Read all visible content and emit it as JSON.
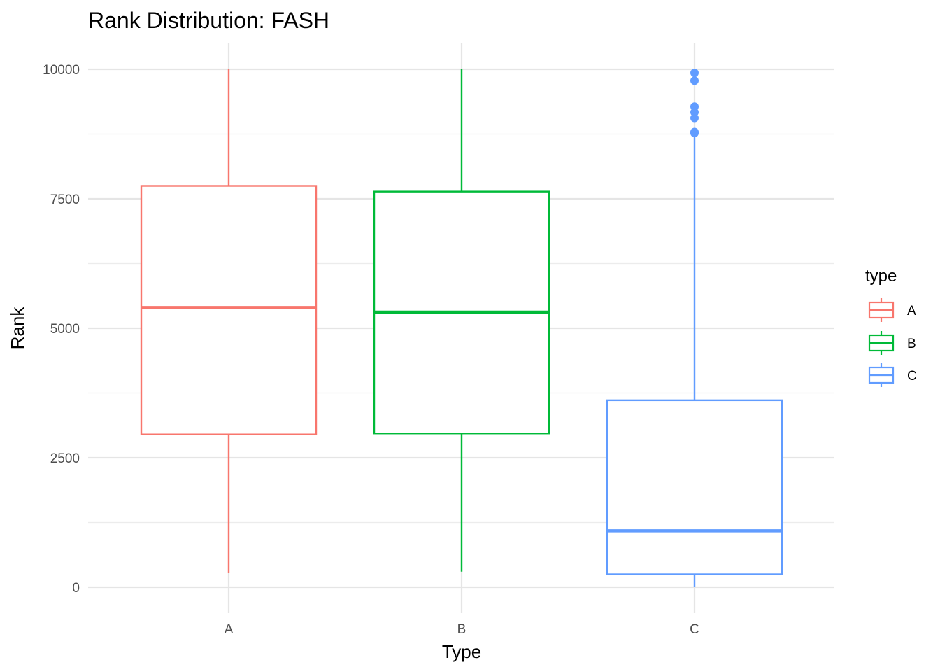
{
  "chart_data": {
    "type": "box",
    "title": "Rank Distribution: FASH",
    "xlabel": "Type",
    "ylabel": "Rank",
    "ylim": [
      -350,
      10500
    ],
    "y_ticks": [
      0,
      2500,
      5000,
      7500,
      10000
    ],
    "y_tick_labels": [
      "0",
      "2500",
      "5000",
      "7500",
      "10000"
    ],
    "grid": true,
    "categories": [
      "A",
      "B",
      "C"
    ],
    "legend": {
      "title": "type",
      "position": "right",
      "entries": [
        "A",
        "B",
        "C"
      ]
    },
    "series": [
      {
        "category": "A",
        "color": "#F8766D",
        "whisker_low": 280,
        "q1": 2950,
        "median": 5400,
        "q3": 7750,
        "whisker_high": 10000,
        "outliers": []
      },
      {
        "category": "B",
        "color": "#00BA38",
        "whisker_low": 300,
        "q1": 2970,
        "median": 5310,
        "q3": 7640,
        "whisker_high": 10000,
        "outliers": []
      },
      {
        "category": "C",
        "color": "#619CFF",
        "whisker_low": 0,
        "q1": 250,
        "median": 1090,
        "q3": 3610,
        "whisker_high": 8700,
        "outliers": [
          8770,
          8790,
          9060,
          9170,
          9280,
          9780,
          9930
        ]
      }
    ]
  }
}
